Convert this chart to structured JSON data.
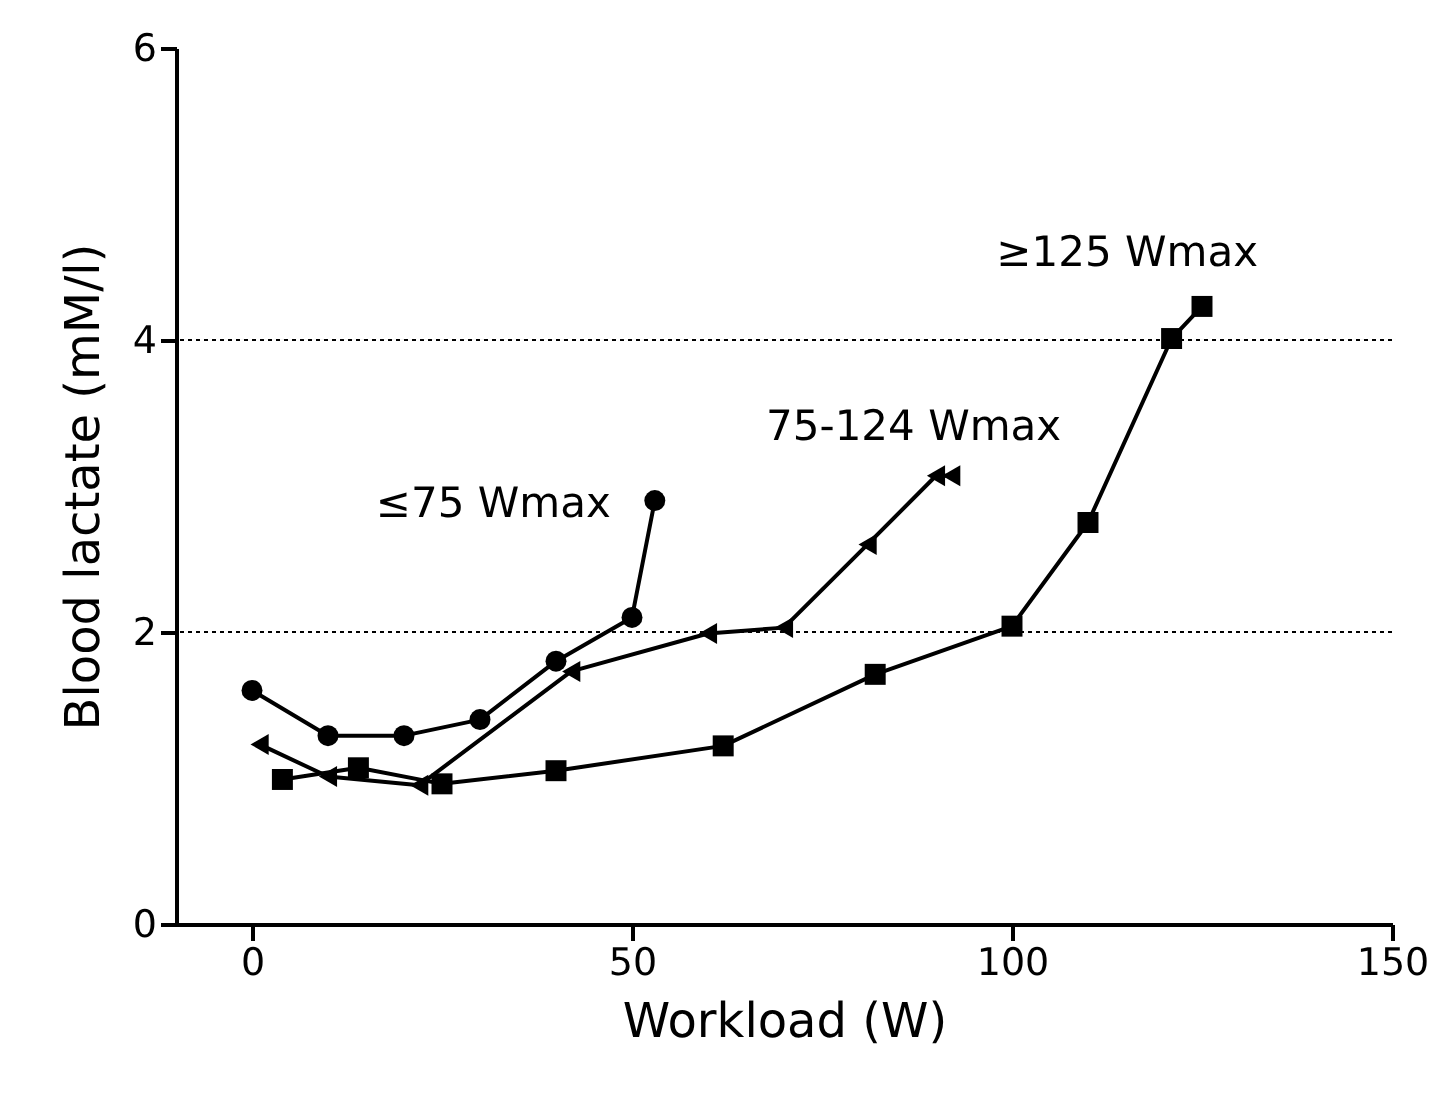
{
  "chart_data": {
    "type": "line",
    "xlabel": "Workload (W)",
    "ylabel": "Blood lactate (mM/l)",
    "xlim": [
      -10,
      150
    ],
    "xticks": [
      0,
      50,
      100,
      150
    ],
    "ylim": [
      0,
      6
    ],
    "yticks": [
      0,
      2,
      4,
      6
    ],
    "grid": false,
    "ref_lines": [
      {
        "axis": "y",
        "value": 2,
        "line_style": "dotted",
        "color": "#000000"
      },
      {
        "axis": "y",
        "value": 4,
        "line_style": "dotted",
        "color": "#000000"
      }
    ],
    "series": [
      {
        "name": "≤75 Wmax",
        "color": "#000000",
        "marker": "circle",
        "x": [
          0,
          10,
          20,
          30,
          40,
          50,
          53
        ],
        "values": [
          1.6,
          1.29,
          1.29,
          1.4,
          1.8,
          2.1,
          2.9
        ]
      },
      {
        "name": "75-124 Wmax",
        "color": "#000000",
        "marker": "triangle",
        "x": [
          1,
          10,
          22,
          42,
          60,
          70,
          81,
          90,
          92
        ],
        "values": [
          1.23,
          1.01,
          0.95,
          1.73,
          1.99,
          2.03,
          2.6,
          3.07,
          3.07
        ]
      },
      {
        "name": "≥125 Wmax",
        "color": "#000000",
        "marker": "square",
        "x": [
          4,
          14,
          25,
          40,
          62,
          82,
          100,
          110,
          121,
          125
        ],
        "values": [
          0.99,
          1.07,
          0.96,
          1.05,
          1.22,
          1.71,
          2.04,
          2.75,
          4.01,
          4.23
        ]
      }
    ]
  }
}
